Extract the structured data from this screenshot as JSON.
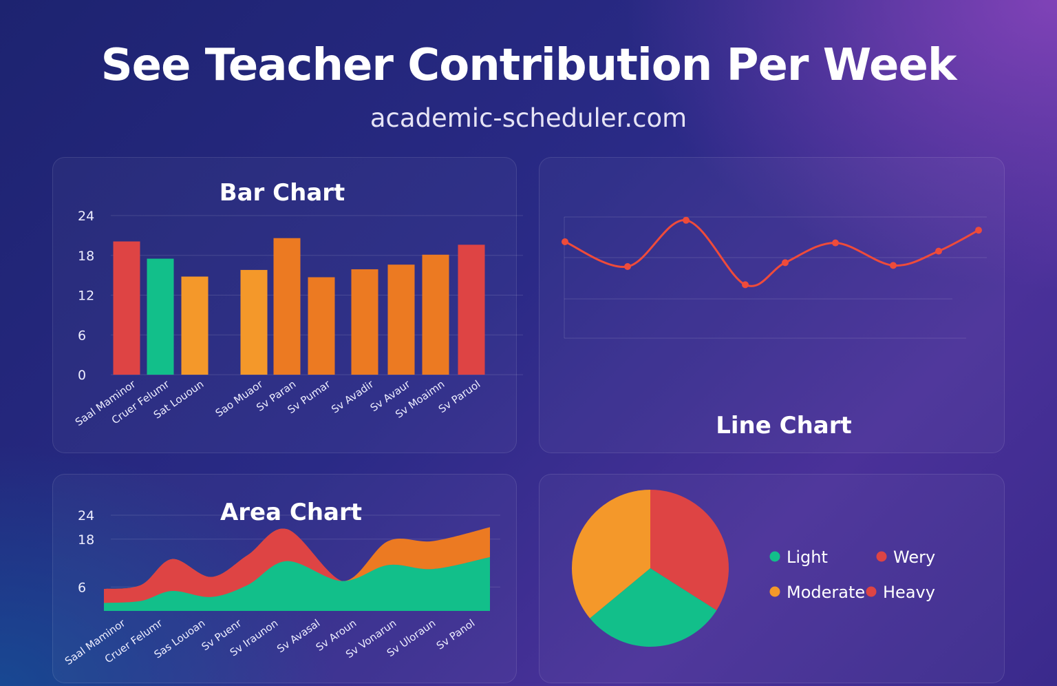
{
  "header": {
    "title": "See Teacher Contribution Per Week",
    "subtitle": "academic-scheduler.com"
  },
  "colors": {
    "red": "#de4444",
    "green": "#12bf8a",
    "orange_light": "#f4982a",
    "orange_dark": "#ec7a22",
    "line": "#ef4b3a"
  },
  "chart_data": [
    {
      "id": "bar",
      "type": "bar",
      "title": "Bar Chart",
      "ylim": [
        0,
        24
      ],
      "yticks": [
        "24",
        "18",
        "12",
        "6",
        "0"
      ],
      "categories": [
        "Saal Maminor",
        "Cruer Felumr",
        "Sat Lououn",
        "Sao Muaor",
        "Sv Paran",
        "Sv Pumar",
        "Sv Avadir",
        "Sv Avaur",
        "Sv Moaimn",
        "Sv Paruol"
      ],
      "values": [
        20.1,
        17.5,
        14.8,
        15.8,
        20.6,
        14.7,
        15.9,
        16.6,
        18.1,
        19.6
      ],
      "bar_colors": [
        "#de4444",
        "#12bf8a",
        "#f4982a",
        "#f4982a",
        "#ec7a22",
        "#ec7a22",
        "#ec7a22",
        "#ec7a22",
        "#ec7a22",
        "#de4444"
      ]
    },
    {
      "id": "line",
      "type": "line",
      "title": "Line Chart",
      "ylim": [
        0,
        24
      ],
      "values": [
        17.5,
        13.0,
        21.4,
        9.7,
        13.7,
        17.3,
        13.2,
        15.8,
        19.6
      ]
    },
    {
      "id": "area",
      "type": "area",
      "title": "Area Chart",
      "ylim": [
        0,
        24
      ],
      "yticks": [
        "24",
        "18",
        "6"
      ],
      "categories": [
        "Saal Maminor",
        "Cruer Felumr",
        "Sas Louoan",
        "Sv Puenr",
        "Sv Iraunon",
        "Sv Avasal",
        "Sv Aroun",
        "Sv Vonarun",
        "Sv Uloraun",
        "Sv Panol"
      ],
      "series": [
        {
          "name": "Light",
          "color": "#12bf8a",
          "values": [
            2.0,
            2.5,
            5.0,
            3.5,
            6.5,
            12.5,
            7.5,
            11.5,
            10.5,
            13.5
          ]
        },
        {
          "name": "Moderate",
          "color": "#ec7a22",
          "values": [
            5.5,
            6.5,
            13.0,
            8.5,
            14.0,
            20.5,
            7.5,
            17.5,
            17.5,
            21.0
          ]
        },
        {
          "name": "Heavy",
          "color": "#de4444",
          "values": [
            5.5,
            6.5,
            13.0,
            8.5,
            14.0,
            20.5,
            7.5,
            11.5,
            10.5,
            13.5
          ]
        }
      ]
    },
    {
      "id": "pie",
      "type": "pie",
      "slices": [
        {
          "label": "Heavy",
          "value": 34,
          "color": "#de4444"
        },
        {
          "label": "Light",
          "value": 30,
          "color": "#12bf8a"
        },
        {
          "label": "Moderate",
          "value": 36,
          "color": "#f4982a"
        }
      ],
      "legend": [
        {
          "label": "Light",
          "color": "#12bf8a"
        },
        {
          "label": "Wery",
          "color": "#de4444"
        },
        {
          "label": "Moderate",
          "color": "#f4982a"
        },
        {
          "label": "Heavy",
          "color": "#de4444"
        }
      ]
    }
  ]
}
